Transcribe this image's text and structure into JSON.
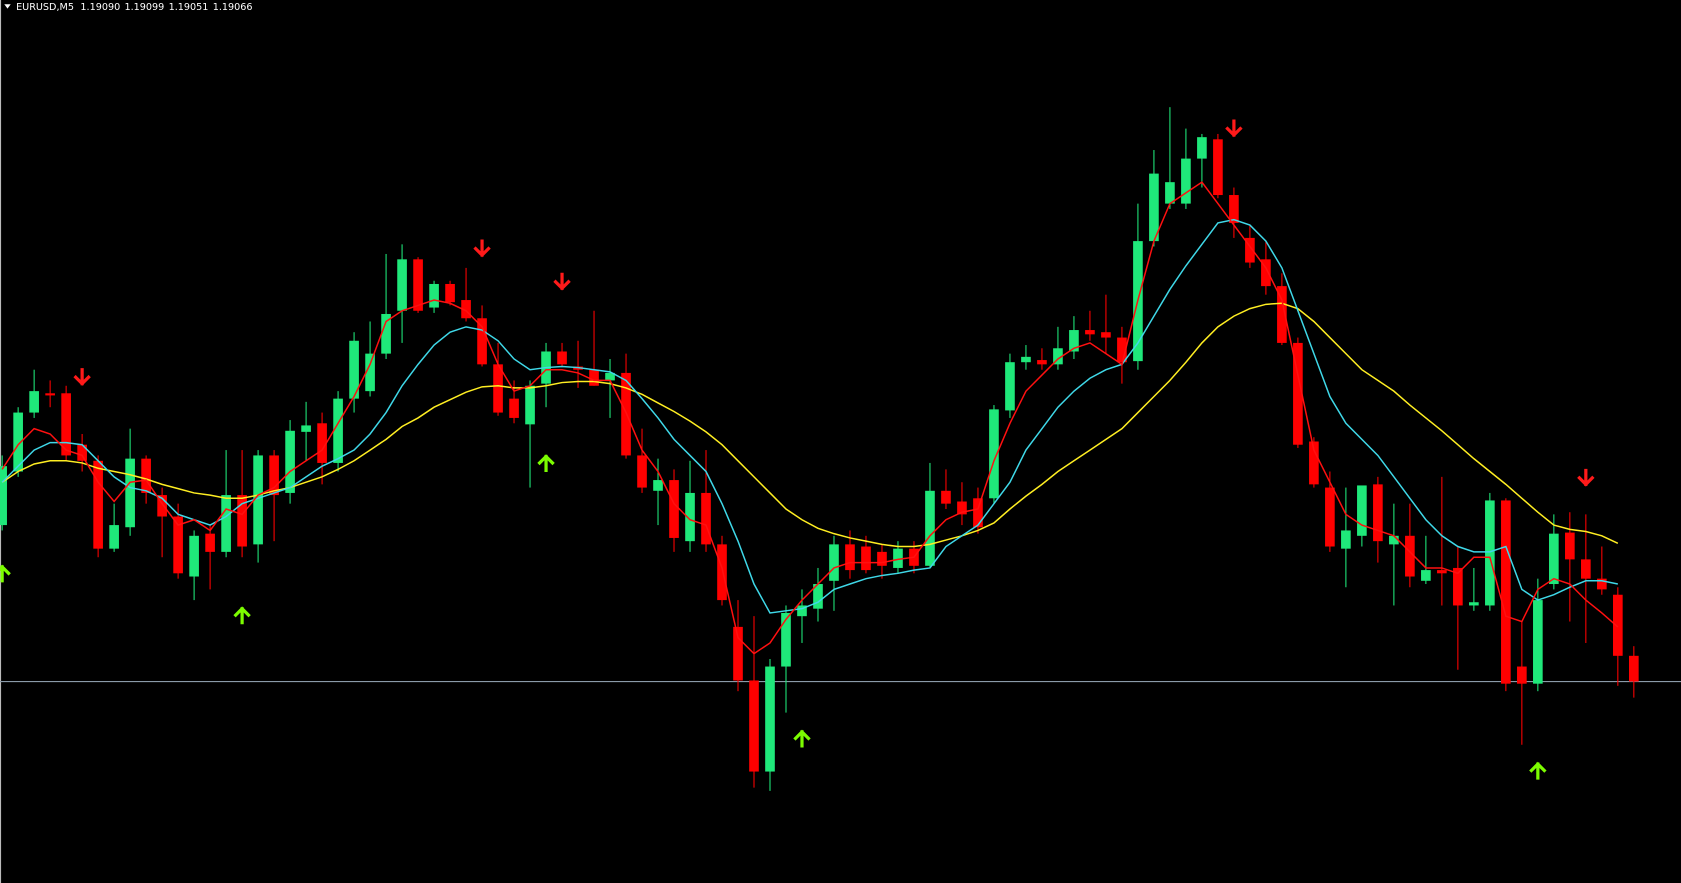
{
  "chart_data": {
    "type": "candlestick",
    "title": "EURUSD,M5",
    "quote": [
      {
        "value": 1.1909,
        "label": "1.19090"
      },
      {
        "value": 1.19099,
        "label": "1.19099"
      },
      {
        "value": 1.19051,
        "label": "1.19051"
      },
      {
        "value": 1.19066,
        "label": "1.19066"
      }
    ],
    "ylim": [
      1.18878,
      1.19702
    ],
    "up_color": "#1fe87a",
    "down_color": "#ff0000",
    "bid_line_color": "#8a9aa8",
    "open": [
      1.19212,
      1.19262,
      1.19317,
      1.19335,
      1.19335,
      1.19287,
      1.19272,
      1.1919,
      1.1921,
      1.19274,
      1.1924,
      1.1922,
      1.19164,
      1.19204,
      1.19187,
      1.1924,
      1.19194,
      1.19277,
      1.19242,
      1.19299,
      1.19307,
      1.1927,
      1.1933,
      1.19337,
      1.19372,
      1.19412,
      1.1946,
      1.19415,
      1.19437,
      1.19422,
      1.19405,
      1.19362,
      1.1933,
      1.19306,
      1.19344,
      1.19374,
      1.1936,
      1.19357,
      1.19347,
      1.19354,
      1.19277,
      1.19244,
      1.19254,
      1.19197,
      1.19242,
      1.19194,
      1.19117,
      1.19067,
      1.18982,
      1.1908,
      1.19127,
      1.19134,
      1.1916,
      1.19194,
      1.19192,
      1.19187,
      1.19172,
      1.1919,
      1.19174,
      1.19244,
      1.19234,
      1.19237,
      1.19237,
      1.19319,
      1.19364,
      1.19366,
      1.19362,
      1.19374,
      1.19394,
      1.19392,
      1.19387,
      1.19365,
      1.19477,
      1.19512,
      1.19512,
      1.19554,
      1.19572,
      1.1952,
      1.1948,
      1.1946,
      1.19435,
      1.19382,
      1.1929,
      1.19247,
      1.1919,
      1.19202,
      1.1925,
      1.19194,
      1.19202,
      1.1916,
      1.1917,
      1.19172,
      1.19137,
      1.19137,
      1.19235,
      1.1908,
      1.19064,
      1.19157,
      1.19205,
      1.1918,
      1.19162,
      1.19147,
      1.1909
    ],
    "high": [
      1.19277,
      1.19322,
      1.19357,
      1.19347,
      1.19342,
      1.19297,
      1.19277,
      1.19232,
      1.19302,
      1.19277,
      1.19247,
      1.19232,
      1.19207,
      1.19212,
      1.19282,
      1.19282,
      1.19282,
      1.19282,
      1.1931,
      1.19327,
      1.19317,
      1.19337,
      1.19392,
      1.19402,
      1.19465,
      1.19474,
      1.19462,
      1.1944,
      1.1944,
      1.19452,
      1.19417,
      1.19382,
      1.19347,
      1.19347,
      1.19382,
      1.19382,
      1.19384,
      1.19412,
      1.19367,
      1.19372,
      1.19302,
      1.19274,
      1.19264,
      1.19272,
      1.19282,
      1.19202,
      1.19142,
      1.19127,
      1.19087,
      1.19137,
      1.19152,
      1.19172,
      1.19202,
      1.19207,
      1.19202,
      1.19194,
      1.19197,
      1.19197,
      1.1927,
      1.19264,
      1.19252,
      1.19247,
      1.19324,
      1.19372,
      1.1938,
      1.19377,
      1.19397,
      1.19407,
      1.19412,
      1.19427,
      1.19397,
      1.19512,
      1.19562,
      1.19602,
      1.19582,
      1.19577,
      1.19577,
      1.19527,
      1.19492,
      1.19477,
      1.19447,
      1.19387,
      1.19294,
      1.19262,
      1.19247,
      1.19247,
      1.19257,
      1.19232,
      1.19232,
      1.19202,
      1.19257,
      1.19192,
      1.19172,
      1.19242,
      1.19237,
      1.19122,
      1.19162,
      1.19222,
      1.19224,
      1.19222,
      1.19192,
      1.19154,
      1.19099
    ],
    "low": [
      1.19207,
      1.19257,
      1.19312,
      1.19322,
      1.19272,
      1.19262,
      1.19182,
      1.19187,
      1.19202,
      1.19232,
      1.19182,
      1.19162,
      1.19142,
      1.19152,
      1.19182,
      1.19182,
      1.19177,
      1.19197,
      1.19232,
      1.19272,
      1.1925,
      1.19262,
      1.19317,
      1.19332,
      1.19367,
      1.19382,
      1.1941,
      1.1941,
      1.19417,
      1.19402,
      1.1936,
      1.19314,
      1.19307,
      1.19247,
      1.19322,
      1.1936,
      1.1934,
      1.19342,
      1.19312,
      1.19274,
      1.19242,
      1.19212,
      1.19187,
      1.19187,
      1.19187,
      1.19137,
      1.19057,
      1.18967,
      1.18964,
      1.19037,
      1.19102,
      1.19122,
      1.19132,
      1.19162,
      1.19167,
      1.19162,
      1.19167,
      1.19167,
      1.19172,
      1.19227,
      1.19212,
      1.19204,
      1.19232,
      1.19312,
      1.19357,
      1.19357,
      1.19357,
      1.19367,
      1.19384,
      1.19372,
      1.19344,
      1.19357,
      1.19472,
      1.19507,
      1.19507,
      1.19527,
      1.19517,
      1.1948,
      1.19452,
      1.19427,
      1.1938,
      1.19284,
      1.19247,
      1.19187,
      1.19154,
      1.19192,
      1.19177,
      1.19137,
      1.19154,
      1.19157,
      1.19137,
      1.19077,
      1.19132,
      1.19132,
      1.19057,
      1.19007,
      1.19057,
      1.19152,
      1.19122,
      1.19102,
      1.19147,
      1.19062,
      1.19051
    ],
    "close": [
      1.19267,
      1.19317,
      1.19337,
      1.19333,
      1.19277,
      1.19272,
      1.1919,
      1.19212,
      1.19274,
      1.19242,
      1.1922,
      1.19167,
      1.19202,
      1.19187,
      1.1924,
      1.19192,
      1.19277,
      1.1924,
      1.193,
      1.19305,
      1.1927,
      1.1933,
      1.19384,
      1.19372,
      1.19409,
      1.1946,
      1.19412,
      1.19437,
      1.1942,
      1.19405,
      1.19362,
      1.19317,
      1.19312,
      1.19342,
      1.19374,
      1.19362,
      1.19357,
      1.19342,
      1.19354,
      1.19277,
      1.19247,
      1.19254,
      1.192,
      1.19242,
      1.19194,
      1.19142,
      1.19067,
      1.18982,
      1.1908,
      1.1913,
      1.19137,
      1.19157,
      1.19194,
      1.1917,
      1.1917,
      1.19174,
      1.1919,
      1.19174,
      1.19244,
      1.19232,
      1.19222,
      1.1921,
      1.1932,
      1.19364,
      1.19369,
      1.19362,
      1.19377,
      1.19394,
      1.1939,
      1.19387,
      1.19364,
      1.19477,
      1.1954,
      1.19532,
      1.19554,
      1.19574,
      1.1952,
      1.19494,
      1.19457,
      1.19435,
      1.19382,
      1.19287,
      1.1925,
      1.19192,
      1.19207,
      1.19249,
      1.19197,
      1.19202,
      1.19164,
      1.1917,
      1.19167,
      1.19137,
      1.1914,
      1.19235,
      1.19064,
      1.19064,
      1.19142,
      1.19204,
      1.1918,
      1.19162,
      1.19152,
      1.1909,
      1.19066
    ],
    "series": [
      {
        "color": "#ffee22",
        "values": [
          1.19252,
          1.19262,
          1.19269,
          1.19272,
          1.19272,
          1.1927,
          1.19265,
          1.19262,
          1.19259,
          1.19255,
          1.1925,
          1.19246,
          1.19242,
          1.1924,
          1.19237,
          1.19237,
          1.1924,
          1.19244,
          1.19247,
          1.19252,
          1.19257,
          1.19264,
          1.19272,
          1.19282,
          1.19292,
          1.19304,
          1.19312,
          1.19322,
          1.19329,
          1.19336,
          1.19341,
          1.19342,
          1.1934,
          1.1934,
          1.19342,
          1.19345,
          1.19346,
          1.19346,
          1.19344,
          1.1934,
          1.19334,
          1.19326,
          1.19318,
          1.19309,
          1.19299,
          1.19287,
          1.19272,
          1.19257,
          1.19242,
          1.19227,
          1.19217,
          1.19209,
          1.19204,
          1.192,
          1.19197,
          1.19194,
          1.19192,
          1.19192,
          1.19194,
          1.19198,
          1.19202,
          1.19207,
          1.19214,
          1.19227,
          1.19239,
          1.1925,
          1.19262,
          1.19272,
          1.19282,
          1.19292,
          1.19302,
          1.19317,
          1.19332,
          1.19347,
          1.19364,
          1.19382,
          1.19397,
          1.19407,
          1.19414,
          1.19418,
          1.19419,
          1.19414,
          1.19402,
          1.19387,
          1.19372,
          1.19357,
          1.19347,
          1.19337,
          1.19324,
          1.19312,
          1.193,
          1.19287,
          1.19274,
          1.19262,
          1.1925,
          1.19237,
          1.19224,
          1.19212,
          1.19208,
          1.19206,
          1.19202,
          1.19195,
          null
        ]
      },
      {
        "color": "#3fd8e8",
        "values": [
          1.19252,
          1.19267,
          1.19282,
          1.19289,
          1.19289,
          1.19287,
          1.19272,
          1.19257,
          1.19247,
          1.19244,
          1.19237,
          1.19222,
          1.19217,
          1.19212,
          1.1922,
          1.19232,
          1.19237,
          1.19242,
          1.19247,
          1.19257,
          1.19267,
          1.19274,
          1.19282,
          1.19297,
          1.19317,
          1.19342,
          1.19362,
          1.1938,
          1.19392,
          1.19397,
          1.19394,
          1.19384,
          1.19367,
          1.19357,
          1.19359,
          1.1936,
          1.19359,
          1.19357,
          1.19355,
          1.19347,
          1.1933,
          1.19312,
          1.19292,
          1.19277,
          1.19262,
          1.19232,
          1.19197,
          1.19157,
          1.1913,
          1.19132,
          1.19134,
          1.1914,
          1.19152,
          1.19157,
          1.19162,
          1.19165,
          1.19167,
          1.1917,
          1.19172,
          1.19192,
          1.19202,
          1.19212,
          1.19232,
          1.19252,
          1.19282,
          1.19302,
          1.19322,
          1.19337,
          1.19349,
          1.19357,
          1.19362,
          1.19382,
          1.19407,
          1.19432,
          1.19454,
          1.19474,
          1.19494,
          1.19497,
          1.19492,
          1.19477,
          1.19452,
          1.19412,
          1.19372,
          1.19332,
          1.19307,
          1.19292,
          1.19277,
          1.19257,
          1.19237,
          1.19217,
          1.19202,
          1.19192,
          1.19187,
          1.19187,
          1.19192,
          1.19152,
          1.19142,
          1.19147,
          1.19154,
          1.1916,
          1.1916,
          1.19157,
          null
        ]
      },
      {
        "color": "#ff1010",
        "values": [
          1.19264,
          1.19287,
          1.19302,
          1.19297,
          1.19282,
          1.19277,
          1.19252,
          1.19234,
          1.19252,
          1.19254,
          1.19232,
          1.19212,
          1.19217,
          1.19207,
          1.19227,
          1.19222,
          1.1924,
          1.19247,
          1.19262,
          1.19272,
          1.19282,
          1.19307,
          1.19332,
          1.19362,
          1.19402,
          1.19412,
          1.19417,
          1.19422,
          1.19419,
          1.19412,
          1.19397,
          1.19362,
          1.19337,
          1.19342,
          1.19357,
          1.19357,
          1.19354,
          1.19347,
          1.19347,
          1.19317,
          1.19282,
          1.19262,
          1.19232,
          1.19217,
          1.19212,
          1.19172,
          1.19107,
          1.19092,
          1.19102,
          1.19124,
          1.19142,
          1.19157,
          1.19172,
          1.19177,
          1.19177,
          1.19177,
          1.1918,
          1.19182,
          1.19202,
          1.19217,
          1.19224,
          1.19227,
          1.19272,
          1.19307,
          1.19337,
          1.19352,
          1.19367,
          1.19377,
          1.19382,
          1.19372,
          1.19362,
          1.19422,
          1.19477,
          1.19512,
          1.19522,
          1.19532,
          1.19512,
          1.19492,
          1.19472,
          1.19452,
          1.19422,
          1.19352,
          1.19282,
          1.19252,
          1.19222,
          1.19212,
          1.19207,
          1.19202,
          1.19187,
          1.19172,
          1.19172,
          1.19167,
          1.19182,
          1.19182,
          1.19127,
          1.19122,
          1.19152,
          1.19162,
          1.19157,
          1.19142,
          1.1913,
          1.19117,
          null
        ]
      }
    ],
    "down_arrows": {
      "color": "#ff1a1a",
      "values": [
        null,
        null,
        null,
        null,
        null,
        1.1935,
        null,
        null,
        null,
        null,
        null,
        null,
        null,
        null,
        null,
        null,
        null,
        null,
        null,
        null,
        null,
        null,
        null,
        null,
        null,
        null,
        null,
        null,
        null,
        null,
        1.1947,
        null,
        null,
        null,
        null,
        1.19439,
        null,
        null,
        null,
        null,
        null,
        null,
        null,
        null,
        null,
        null,
        null,
        null,
        null,
        null,
        null,
        null,
        null,
        null,
        null,
        null,
        null,
        null,
        null,
        null,
        null,
        null,
        null,
        null,
        null,
        null,
        null,
        null,
        null,
        null,
        null,
        null,
        null,
        null,
        null,
        null,
        null,
        1.19582,
        null,
        null,
        null,
        null,
        null,
        null,
        null,
        null,
        null,
        null,
        null,
        null,
        null,
        null,
        null,
        null,
        null,
        null,
        null,
        null,
        null,
        1.19256,
        null,
        null,
        null
      ]
    },
    "up_arrows": {
      "color": "#7cfc00",
      "values": [
        1.19167,
        null,
        null,
        null,
        null,
        null,
        null,
        null,
        null,
        null,
        null,
        null,
        null,
        null,
        null,
        1.19128,
        null,
        null,
        null,
        null,
        null,
        null,
        null,
        null,
        null,
        null,
        null,
        null,
        null,
        null,
        null,
        null,
        null,
        null,
        1.1927,
        null,
        null,
        null,
        null,
        null,
        null,
        null,
        null,
        null,
        null,
        null,
        null,
        null,
        null,
        null,
        1.19013,
        null,
        null,
        null,
        null,
        null,
        null,
        null,
        null,
        null,
        null,
        null,
        null,
        null,
        null,
        null,
        null,
        null,
        null,
        null,
        null,
        null,
        null,
        null,
        null,
        null,
        null,
        null,
        null,
        null,
        null,
        null,
        null,
        null,
        null,
        null,
        null,
        null,
        null,
        null,
        null,
        null,
        null,
        null,
        null,
        null,
        1.18983,
        null,
        null,
        null,
        null,
        null,
        null
      ]
    }
  }
}
